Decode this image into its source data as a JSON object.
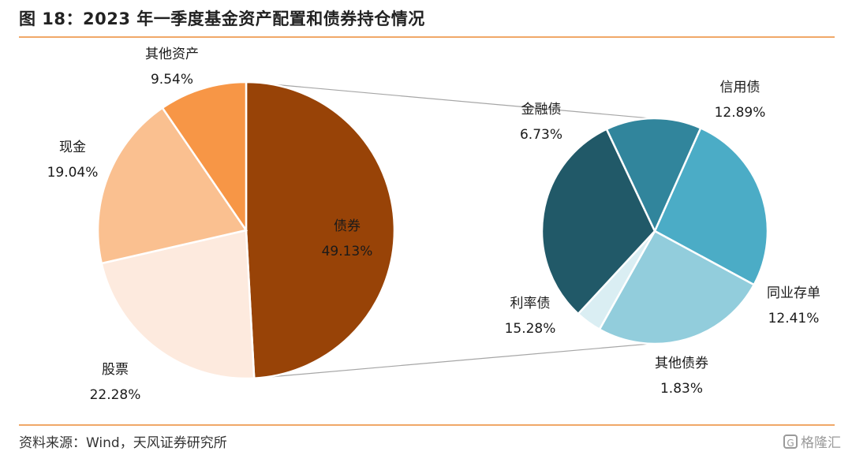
{
  "title": "图 18：2023 年一季度基金资产配置和债券持仓情况",
  "source": "资料来源：Wind，天风证券研究所",
  "watermark": "格隆汇",
  "watermark_icon": "G",
  "chart_data": [
    {
      "type": "pie",
      "slices": [
        {
          "name": "债券",
          "value": 49.13,
          "value_label": "49.13%",
          "color": "#984307"
        },
        {
          "name": "股票",
          "value": 22.28,
          "value_label": "22.28%",
          "color": "#fdeade"
        },
        {
          "name": "现金",
          "value": 19.04,
          "value_label": "19.04%",
          "color": "#fac090"
        },
        {
          "name": "其他资产",
          "value": 9.54,
          "value_label": "9.54%",
          "color": "#f79646"
        }
      ]
    },
    {
      "type": "pie",
      "slices": [
        {
          "name": "信用债",
          "value": 12.89,
          "value_label": "12.89%",
          "color": "#4bacc6"
        },
        {
          "name": "同业存单",
          "value": 12.41,
          "value_label": "12.41%",
          "color": "#92cddc"
        },
        {
          "name": "其他债券",
          "value": 1.83,
          "value_label": "1.83%",
          "color": "#daeef3"
        },
        {
          "name": "利率债",
          "value": 15.28,
          "value_label": "15.28%",
          "color": "#215968"
        },
        {
          "name": "金融债",
          "value": 6.73,
          "value_label": "6.73%",
          "color": "#31859c"
        }
      ]
    }
  ]
}
